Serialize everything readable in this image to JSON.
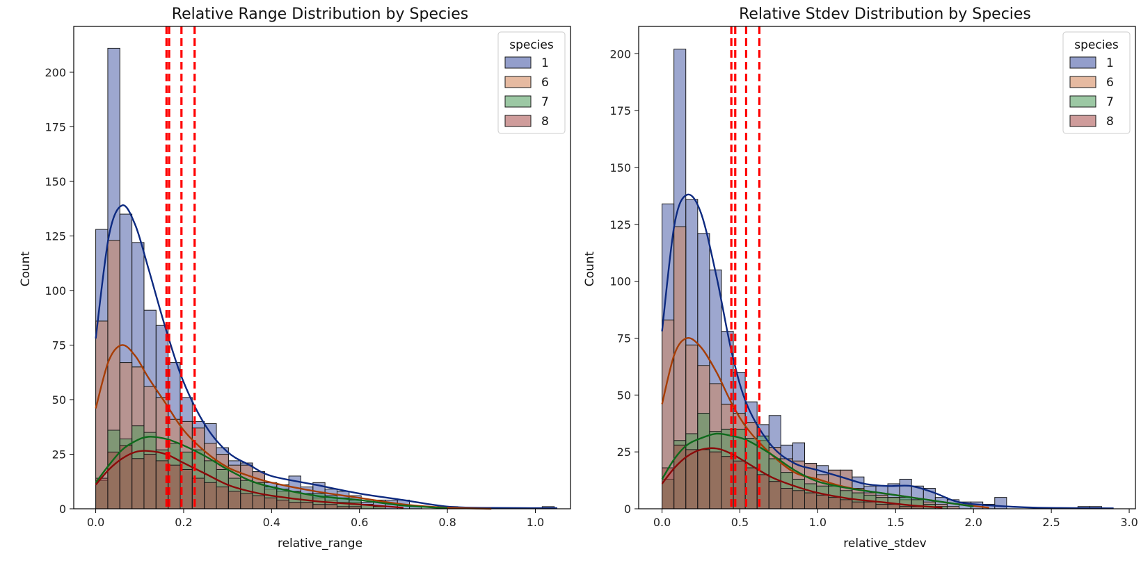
{
  "chart_data": [
    {
      "type": "histogram",
      "title": "Relative Range Distribution by Species",
      "xlabel": "relative_range",
      "ylabel": "Count",
      "xlim": [
        -0.05,
        1.08
      ],
      "ylim": [
        0,
        221
      ],
      "xticks": [
        0.0,
        0.2,
        0.4,
        0.6,
        0.8,
        1.0
      ],
      "xtick_labels": [
        "0.0",
        "0.2",
        "0.4",
        "0.6",
        "0.8",
        "1.0"
      ],
      "yticks": [
        0,
        25,
        50,
        75,
        100,
        125,
        150,
        175,
        200
      ],
      "ytick_labels": [
        "0",
        "25",
        "50",
        "75",
        "100",
        "125",
        "150",
        "175",
        "200"
      ],
      "bin_start": 0.0,
      "bin_width": 0.02745,
      "legend": {
        "title": "species",
        "position": "top-right"
      },
      "grid": false,
      "series": [
        {
          "name": "1",
          "color": "#3b4fa0",
          "counts": [
            128,
            211,
            135,
            122,
            91,
            84,
            67,
            51,
            40,
            39,
            28,
            22,
            21,
            17,
            12,
            11,
            15,
            10,
            12,
            9,
            8,
            6,
            3,
            4,
            4,
            4,
            1,
            0,
            0,
            1,
            0,
            0,
            0,
            0,
            0,
            0,
            0,
            1
          ],
          "kde_x": [
            0.0,
            0.03,
            0.06,
            0.09,
            0.12,
            0.16,
            0.2,
            0.25,
            0.3,
            0.35,
            0.4,
            0.5,
            0.6,
            0.7,
            0.8,
            0.9,
            1.05
          ],
          "kde_y": [
            78,
            125,
            139,
            130,
            110,
            82,
            58,
            38,
            26,
            20,
            15,
            11,
            7,
            4,
            1,
            0.4,
            0.3
          ]
        },
        {
          "name": "6",
          "color": "#d18254",
          "counts": [
            86,
            123,
            67,
            65,
            56,
            51,
            41,
            40,
            37,
            30,
            25,
            20,
            20,
            17,
            9,
            8,
            8,
            7,
            5,
            4,
            3,
            3,
            2,
            1,
            0,
            0,
            0,
            0,
            0,
            0,
            0,
            0,
            0,
            0,
            0,
            0,
            0,
            0
          ],
          "kde_x": [
            0.0,
            0.03,
            0.06,
            0.09,
            0.12,
            0.16,
            0.2,
            0.25,
            0.3,
            0.35,
            0.4,
            0.5,
            0.6,
            0.7,
            0.8,
            0.9
          ],
          "kde_y": [
            46,
            68,
            75,
            70,
            60,
            48,
            36,
            26,
            19,
            15,
            12,
            8,
            5,
            2,
            0.5,
            0
          ]
        },
        {
          "name": "7",
          "color": "#4a9a5a",
          "counts": [
            13,
            36,
            32,
            38,
            35,
            27,
            30,
            26,
            27,
            22,
            18,
            14,
            13,
            12,
            10,
            9,
            8,
            7,
            7,
            6,
            5,
            4,
            2,
            1,
            0,
            0,
            0,
            0,
            0,
            0,
            0,
            0,
            0,
            0,
            0,
            0,
            0,
            0
          ],
          "kde_x": [
            0.0,
            0.03,
            0.06,
            0.09,
            0.12,
            0.16,
            0.2,
            0.25,
            0.3,
            0.35,
            0.4,
            0.5,
            0.6,
            0.7,
            0.8
          ],
          "kde_y": [
            12,
            20,
            27,
            31,
            33,
            32,
            29,
            24,
            18,
            13,
            10,
            6,
            4,
            1.5,
            0.3
          ]
        },
        {
          "name": "8",
          "color": "#a84a48",
          "counts": [
            14,
            26,
            29,
            23,
            25,
            22,
            20,
            18,
            14,
            12,
            10,
            8,
            7,
            6,
            5,
            4,
            3,
            3,
            2,
            2,
            1,
            1,
            0,
            0,
            0,
            0,
            0,
            0,
            0,
            0,
            0,
            0,
            0,
            0,
            0,
            0,
            0,
            0
          ],
          "kde_x": [
            0.0,
            0.03,
            0.06,
            0.09,
            0.12,
            0.16,
            0.2,
            0.25,
            0.3,
            0.35,
            0.4,
            0.5,
            0.6,
            0.7
          ],
          "kde_y": [
            11,
            18,
            23,
            26,
            26.5,
            25,
            21,
            16,
            11,
            8,
            6,
            3.5,
            2,
            0.5
          ]
        }
      ],
      "kde_colors": {
        "1": "#0d2a80",
        "6": "#a63d05",
        "7": "#0e6a1c",
        "8": "#8b0a0a"
      },
      "vlines": {
        "color": "#ff0000",
        "style": "dashed",
        "x": [
          0.161,
          0.167,
          0.195,
          0.225
        ]
      }
    },
    {
      "type": "histogram",
      "title": "Relative Stdev Distribution by Species",
      "xlabel": "relative_stdev",
      "ylabel": "Count",
      "xlim": [
        -0.15,
        3.04
      ],
      "ylim": [
        0,
        212
      ],
      "xticks": [
        0.0,
        0.5,
        1.0,
        1.5,
        2.0,
        2.5,
        3.0
      ],
      "xtick_labels": [
        "0.0",
        "0.5",
        "1.0",
        "1.5",
        "2.0",
        "2.5",
        "3.0"
      ],
      "yticks": [
        0,
        25,
        50,
        75,
        100,
        125,
        150,
        175,
        200
      ],
      "ytick_labels": [
        "0",
        "25",
        "50",
        "75",
        "100",
        "125",
        "150",
        "175",
        "200"
      ],
      "bin_start": 0.0,
      "bin_width": 0.0763,
      "legend": {
        "title": "species",
        "position": "top-right"
      },
      "grid": false,
      "series": [
        {
          "name": "1",
          "color": "#3b4fa0",
          "counts": [
            134,
            202,
            136,
            121,
            105,
            78,
            60,
            47,
            37,
            41,
            28,
            29,
            20,
            19,
            17,
            17,
            14,
            10,
            10,
            11,
            13,
            10,
            9,
            5,
            4,
            3,
            3,
            2,
            5,
            0,
            0,
            0,
            0,
            0,
            0,
            1,
            1,
            0
          ],
          "kde_x": [
            0.0,
            0.08,
            0.16,
            0.25,
            0.35,
            0.45,
            0.55,
            0.7,
            0.85,
            1.0,
            1.15,
            1.3,
            1.45,
            1.6,
            1.75,
            1.9,
            2.1,
            2.4,
            2.9
          ],
          "kde_y": [
            78,
            125,
            138,
            130,
            102,
            68,
            45,
            28,
            20,
            17,
            14,
            11,
            10,
            10,
            7,
            3,
            1.5,
            0.5,
            0.2
          ]
        },
        {
          "name": "6",
          "color": "#d18254",
          "counts": [
            83,
            124,
            72,
            63,
            55,
            46,
            42,
            38,
            30,
            27,
            22,
            21,
            20,
            15,
            17,
            17,
            9,
            7,
            6,
            5,
            4,
            4,
            3,
            2,
            1,
            0,
            0,
            0,
            0,
            0,
            0,
            0,
            0,
            0,
            0,
            0,
            0,
            0
          ],
          "kde_x": [
            0.0,
            0.08,
            0.16,
            0.25,
            0.35,
            0.45,
            0.55,
            0.7,
            0.85,
            1.0,
            1.15,
            1.3,
            1.5,
            1.7,
            1.9,
            2.1
          ],
          "kde_y": [
            46,
            68,
            75,
            71,
            60,
            46,
            35,
            24,
            16,
            13,
            10,
            8,
            6,
            4,
            2,
            0.5
          ]
        },
        {
          "name": "7",
          "color": "#4a9a5a",
          "counts": [
            13,
            30,
            33,
            42,
            34,
            35,
            35,
            31,
            32,
            22,
            16,
            13,
            11,
            10,
            10,
            8,
            7,
            6,
            5,
            5,
            5,
            4,
            2,
            1,
            0,
            0,
            0,
            0,
            0,
            0,
            0,
            0,
            0,
            0,
            0,
            0,
            0,
            0
          ],
          "kde_x": [
            0.0,
            0.08,
            0.16,
            0.25,
            0.35,
            0.45,
            0.55,
            0.7,
            0.85,
            1.0,
            1.2,
            1.4,
            1.6,
            1.8,
            2.0
          ],
          "kde_y": [
            13,
            22,
            28,
            31,
            33,
            32,
            30,
            24,
            17,
            12,
            9,
            7,
            5,
            3,
            1
          ]
        },
        {
          "name": "8",
          "color": "#a84a48",
          "counts": [
            18,
            28,
            26,
            26,
            25,
            23,
            21,
            18,
            15,
            12,
            9,
            8,
            7,
            6,
            5,
            4,
            3,
            3,
            2,
            2,
            1,
            1,
            0,
            0,
            0,
            0,
            0,
            0,
            0,
            0,
            0,
            0,
            0,
            0,
            0,
            0,
            0,
            0
          ],
          "kde_x": [
            0.0,
            0.08,
            0.16,
            0.25,
            0.35,
            0.45,
            0.55,
            0.7,
            0.85,
            1.0,
            1.2,
            1.4,
            1.6,
            1.8
          ],
          "kde_y": [
            11,
            18,
            23,
            26,
            26.5,
            24,
            20,
            14,
            10,
            7,
            4.5,
            3,
            1.5,
            0.5
          ]
        }
      ],
      "kde_colors": {
        "1": "#0d2a80",
        "6": "#a63d05",
        "7": "#0e6a1c",
        "8": "#8b0a0a"
      },
      "vlines": {
        "color": "#ff0000",
        "style": "dashed",
        "x": [
          0.445,
          0.47,
          0.54,
          0.625
        ]
      }
    }
  ]
}
